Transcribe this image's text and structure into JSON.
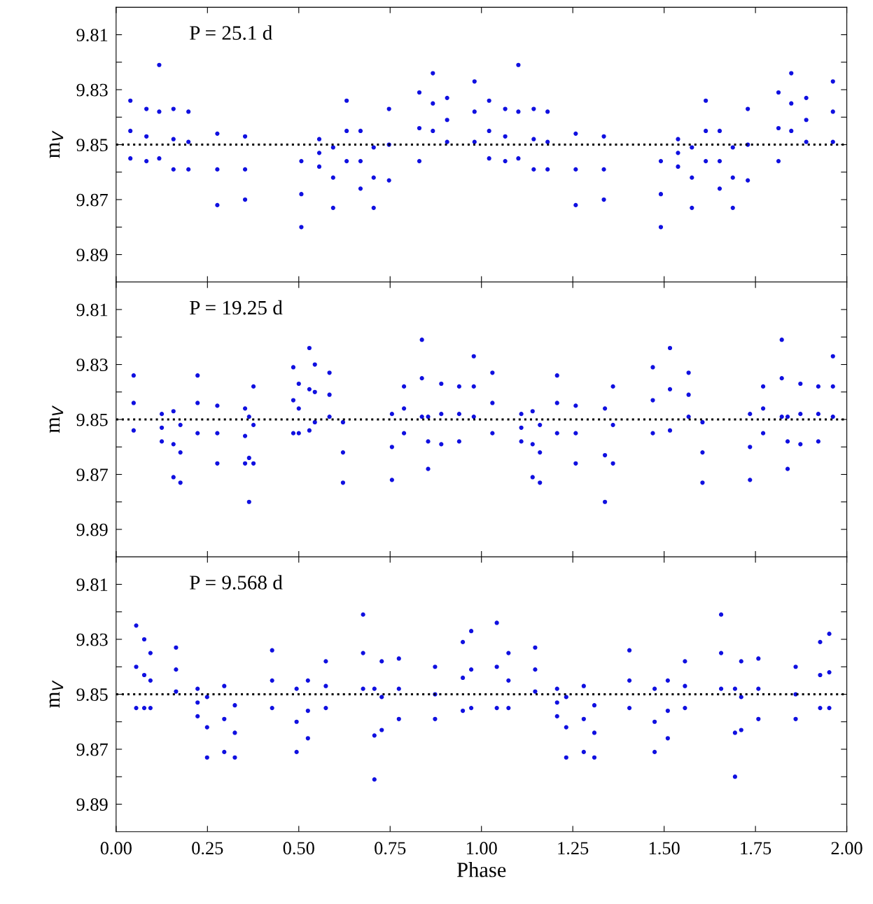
{
  "chart_data": [
    {
      "type": "scatter",
      "ylabel": "m$_{V}$",
      "annotations": [
        "P = 25.1 d"
      ],
      "marker": "circle",
      "grid": false,
      "tick_labels": "y",
      "xlim": [
        0,
        2
      ],
      "xticks": [
        {
          "value": 0,
          "label": null
        },
        {
          "value": 0.25,
          "label": null
        },
        {
          "value": 0.5,
          "label": null
        },
        {
          "value": 0.75,
          "label": null
        },
        {
          "value": 1,
          "label": null
        },
        {
          "value": 1.25,
          "label": null
        },
        {
          "value": 1.5,
          "label": null
        },
        {
          "value": 1.75,
          "label": null
        },
        {
          "value": 2,
          "label": null
        }
      ],
      "ylim": [
        9.9,
        9.8
      ],
      "yticks": [
        9.81,
        {
          "value": 9.82,
          "label": null
        },
        9.83,
        {
          "value": 9.84,
          "label": null
        },
        9.85,
        {
          "value": 9.86,
          "label": null
        },
        9.87,
        {
          "value": 9.88,
          "label": null
        },
        9.89
      ],
      "ref_lines": [
        {
          "axis": "y",
          "value": 9.85,
          "color": "#000000",
          "line_style": "dotted"
        }
      ],
      "x": [
        0.039,
        0.039,
        0.039,
        0.083,
        0.083,
        0.083,
        0.118,
        0.118,
        0.118,
        0.157,
        0.157,
        0.157,
        0.198,
        0.198,
        0.198,
        0.277,
        0.277,
        0.277,
        0.353,
        0.353,
        0.353,
        0.507,
        0.507,
        0.507,
        0.556,
        0.556,
        0.556,
        0.594,
        0.594,
        0.594,
        0.631,
        0.631,
        0.631,
        0.669,
        0.669,
        0.669,
        0.705,
        0.705,
        0.705,
        0.747,
        0.747,
        0.747,
        0.83,
        0.83,
        0.83,
        0.867,
        0.867,
        0.867,
        0.906,
        0.906,
        0.906,
        0.981,
        0.981,
        0.981,
        1.021,
        1.021,
        1.021,
        1.065,
        1.065,
        1.065,
        1.101,
        1.101,
        1.101,
        1.143,
        1.143,
        1.143,
        1.181,
        1.181,
        1.181,
        1.258,
        1.258,
        1.258,
        1.335,
        1.335,
        1.335,
        1.491,
        1.491,
        1.491,
        1.538,
        1.538,
        1.538,
        1.576,
        1.576,
        1.576,
        1.614,
        1.614,
        1.614,
        1.652,
        1.652,
        1.652,
        1.688,
        1.688,
        1.688,
        1.729,
        1.729,
        1.729,
        1.813,
        1.813,
        1.813,
        1.848,
        1.848,
        1.848,
        1.889,
        1.889,
        1.889,
        1.962,
        1.962,
        1.962
      ],
      "series": [
        {
          "color": "#1010e0",
          "values": [
            9.834,
            9.845,
            9.855,
            9.837,
            9.847,
            9.856,
            9.821,
            9.838,
            9.855,
            9.837,
            9.848,
            9.859,
            9.838,
            9.849,
            9.859,
            9.846,
            9.859,
            9.872,
            9.847,
            9.859,
            9.87,
            9.856,
            9.868,
            9.88,
            9.848,
            9.853,
            9.858,
            9.851,
            9.862,
            9.873,
            9.834,
            9.845,
            9.856,
            9.845,
            9.856,
            9.866,
            9.851,
            9.862,
            9.873,
            9.837,
            9.85,
            9.863,
            9.831,
            9.844,
            9.856,
            9.824,
            9.835,
            9.845,
            9.833,
            9.841,
            9.849,
            9.827,
            9.838,
            9.849,
            9.834,
            9.845,
            9.855,
            9.837,
            9.847,
            9.856,
            9.821,
            9.838,
            9.855,
            9.837,
            9.848,
            9.859,
            9.838,
            9.849,
            9.859,
            9.846,
            9.859,
            9.872,
            9.847,
            9.859,
            9.87,
            9.856,
            9.868,
            9.88,
            9.848,
            9.853,
            9.858,
            9.851,
            9.862,
            9.873,
            9.834,
            9.845,
            9.856,
            9.845,
            9.856,
            9.866,
            9.851,
            9.862,
            9.873,
            9.837,
            9.85,
            9.863,
            9.831,
            9.844,
            9.856,
            9.824,
            9.835,
            9.845,
            9.833,
            9.841,
            9.849,
            9.827,
            9.838,
            9.849
          ]
        }
      ]
    },
    {
      "type": "scatter",
      "ylabel": "m$_{V}$",
      "annotations": [
        "P = 19.25 d"
      ],
      "marker": "circle",
      "grid": false,
      "tick_labels": "y",
      "xlim": [
        0,
        2
      ],
      "xticks": [
        {
          "value": 0,
          "label": null
        },
        {
          "value": 0.25,
          "label": null
        },
        {
          "value": 0.5,
          "label": null
        },
        {
          "value": 0.75,
          "label": null
        },
        {
          "value": 1,
          "label": null
        },
        {
          "value": 1.25,
          "label": null
        },
        {
          "value": 1.5,
          "label": null
        },
        {
          "value": 1.75,
          "label": null
        },
        {
          "value": 2,
          "label": null
        }
      ],
      "ylim": [
        9.9,
        9.8
      ],
      "yticks": [
        9.81,
        {
          "value": 9.82,
          "label": null
        },
        9.83,
        {
          "value": 9.84,
          "label": null
        },
        9.85,
        {
          "value": 9.86,
          "label": null
        },
        9.87,
        {
          "value": 9.88,
          "label": null
        },
        9.89
      ],
      "ref_lines": [
        {
          "axis": "y",
          "value": 9.85,
          "color": "#000000",
          "line_style": "dotted"
        }
      ],
      "x": [
        0.048,
        0.048,
        0.048,
        0.125,
        0.125,
        0.125,
        0.157,
        0.157,
        0.157,
        0.176,
        0.176,
        0.176,
        0.223,
        0.223,
        0.223,
        0.277,
        0.277,
        0.277,
        0.353,
        0.353,
        0.353,
        0.364,
        0.364,
        0.364,
        0.376,
        0.376,
        0.376,
        0.485,
        0.485,
        0.485,
        0.5,
        0.5,
        0.5,
        0.529,
        0.529,
        0.529,
        0.544,
        0.544,
        0.544,
        0.584,
        0.584,
        0.584,
        0.621,
        0.621,
        0.621,
        0.755,
        0.755,
        0.755,
        0.788,
        0.788,
        0.788,
        0.837,
        0.837,
        0.837,
        0.854,
        0.854,
        0.854,
        0.89,
        0.89,
        0.89,
        0.939,
        0.939,
        0.939,
        0.979,
        0.979,
        0.979,
        1.03,
        1.03,
        1.03,
        1.109,
        1.109,
        1.109,
        1.14,
        1.14,
        1.14,
        1.16,
        1.16,
        1.16,
        1.207,
        1.207,
        1.207,
        1.258,
        1.258,
        1.258,
        1.338,
        1.338,
        1.338,
        1.36,
        1.36,
        1.36,
        1.469,
        1.469,
        1.469,
        1.516,
        1.516,
        1.516,
        1.567,
        1.567,
        1.567,
        1.605,
        1.605,
        1.605,
        1.735,
        1.735,
        1.735,
        1.771,
        1.771,
        1.771,
        1.822,
        1.822,
        1.822,
        1.838,
        1.838,
        1.838,
        1.873,
        1.873,
        1.873,
        1.922,
        1.922,
        1.922,
        1.962,
        1.962,
        1.962
      ],
      "series": [
        {
          "color": "#1010e0",
          "values": [
            9.834,
            9.844,
            9.854,
            9.848,
            9.853,
            9.858,
            9.847,
            9.859,
            9.871,
            9.852,
            9.862,
            9.873,
            9.834,
            9.844,
            9.855,
            9.845,
            9.855,
            9.866,
            9.846,
            9.856,
            9.866,
            9.849,
            9.864,
            9.88,
            9.838,
            9.852,
            9.866,
            9.831,
            9.843,
            9.855,
            9.837,
            9.846,
            9.855,
            9.824,
            9.839,
            9.854,
            9.83,
            9.84,
            9.851,
            9.833,
            9.841,
            9.849,
            9.851,
            9.862,
            9.873,
            9.848,
            9.86,
            9.872,
            9.838,
            9.846,
            9.855,
            9.821,
            9.835,
            9.849,
            9.849,
            9.858,
            9.868,
            9.837,
            9.848,
            9.859,
            9.838,
            9.848,
            9.858,
            9.827,
            9.838,
            9.849,
            9.833,
            9.844,
            9.855,
            9.848,
            9.853,
            9.858,
            9.847,
            9.859,
            9.871,
            9.852,
            9.862,
            9.873,
            9.834,
            9.844,
            9.855,
            9.845,
            9.855,
            9.866,
            9.846,
            9.863,
            9.88,
            9.838,
            9.852,
            9.866,
            9.831,
            9.843,
            9.855,
            9.824,
            9.839,
            9.854,
            9.833,
            9.841,
            9.849,
            9.851,
            9.862,
            9.873,
            9.848,
            9.86,
            9.872,
            9.838,
            9.846,
            9.855,
            9.821,
            9.835,
            9.849,
            9.849,
            9.858,
            9.868,
            9.837,
            9.848,
            9.859,
            9.838,
            9.848,
            9.858,
            9.827,
            9.838,
            9.849
          ]
        }
      ]
    },
    {
      "type": "scatter",
      "ylabel": "m$_{V}$",
      "xlabel": "Phase",
      "annotations": [
        "P = 9.568 d"
      ],
      "marker": "circle",
      "grid": false,
      "xlim": [
        0,
        2
      ],
      "xticks": [
        {
          "value": 0,
          "label": "0.00"
        },
        {
          "value": 0.25,
          "label": "0.25"
        },
        {
          "value": 0.5,
          "label": "0.50"
        },
        {
          "value": 0.75,
          "label": "0.75"
        },
        {
          "value": 1,
          "label": "1.00"
        },
        {
          "value": 1.25,
          "label": "1.25"
        },
        {
          "value": 1.5,
          "label": "1.50"
        },
        {
          "value": 1.75,
          "label": "1.75"
        },
        {
          "value": 2,
          "label": "2.00"
        }
      ],
      "ylim": [
        9.9,
        9.8
      ],
      "yticks": [
        9.81,
        {
          "value": 9.82,
          "label": null
        },
        9.83,
        {
          "value": 9.84,
          "label": null
        },
        9.85,
        {
          "value": 9.86,
          "label": null
        },
        9.87,
        {
          "value": 9.88,
          "label": null
        },
        9.89
      ],
      "ref_lines": [
        {
          "axis": "y",
          "value": 9.85,
          "color": "#000000",
          "line_style": "dotted"
        }
      ],
      "x": [
        0.055,
        0.055,
        0.055,
        0.077,
        0.077,
        0.077,
        0.094,
        0.094,
        0.094,
        0.164,
        0.164,
        0.164,
        0.223,
        0.223,
        0.223,
        0.249,
        0.249,
        0.249,
        0.296,
        0.296,
        0.296,
        0.325,
        0.325,
        0.325,
        0.427,
        0.427,
        0.427,
        0.494,
        0.494,
        0.494,
        0.525,
        0.525,
        0.525,
        0.574,
        0.574,
        0.574,
        0.676,
        0.676,
        0.676,
        0.707,
        0.707,
        0.707,
        0.727,
        0.727,
        0.727,
        0.774,
        0.774,
        0.774,
        0.873,
        0.873,
        0.873,
        0.949,
        0.949,
        0.949,
        0.972,
        0.972,
        0.972,
        1.042,
        1.042,
        1.042,
        1.074,
        1.074,
        1.074,
        1.147,
        1.147,
        1.147,
        1.207,
        1.207,
        1.207,
        1.232,
        1.232,
        1.232,
        1.28,
        1.28,
        1.28,
        1.309,
        1.309,
        1.309,
        1.405,
        1.405,
        1.405,
        1.474,
        1.474,
        1.474,
        1.51,
        1.51,
        1.51,
        1.557,
        1.557,
        1.557,
        1.656,
        1.656,
        1.656,
        1.694,
        1.694,
        1.694,
        1.711,
        1.711,
        1.711,
        1.758,
        1.758,
        1.758,
        1.86,
        1.86,
        1.86,
        1.927,
        1.927,
        1.927,
        1.952,
        1.952,
        1.952
      ],
      "series": [
        {
          "color": "#1010e0",
          "values": [
            9.825,
            9.84,
            9.855,
            9.83,
            9.843,
            9.855,
            9.835,
            9.845,
            9.855,
            9.833,
            9.841,
            9.849,
            9.848,
            9.853,
            9.858,
            9.851,
            9.862,
            9.873,
            9.847,
            9.859,
            9.871,
            9.854,
            9.864,
            9.873,
            9.834,
            9.845,
            9.855,
            9.848,
            9.86,
            9.871,
            9.845,
            9.856,
            9.866,
            9.838,
            9.847,
            9.855,
            9.821,
            9.835,
            9.848,
            9.848,
            9.865,
            9.881,
            9.838,
            9.851,
            9.863,
            9.837,
            9.848,
            9.859,
            9.84,
            9.85,
            9.859,
            9.831,
            9.844,
            9.856,
            9.827,
            9.841,
            9.855,
            9.824,
            9.84,
            9.855,
            9.835,
            9.845,
            9.855,
            9.833,
            9.841,
            9.849,
            9.848,
            9.853,
            9.858,
            9.851,
            9.862,
            9.873,
            9.847,
            9.859,
            9.871,
            9.854,
            9.864,
            9.873,
            9.834,
            9.845,
            9.855,
            9.848,
            9.86,
            9.871,
            9.845,
            9.856,
            9.866,
            9.838,
            9.847,
            9.855,
            9.821,
            9.835,
            9.848,
            9.848,
            9.864,
            9.88,
            9.838,
            9.851,
            9.863,
            9.837,
            9.848,
            9.859,
            9.84,
            9.85,
            9.859,
            9.831,
            9.843,
            9.855,
            9.828,
            9.842,
            9.855
          ]
        }
      ]
    }
  ]
}
